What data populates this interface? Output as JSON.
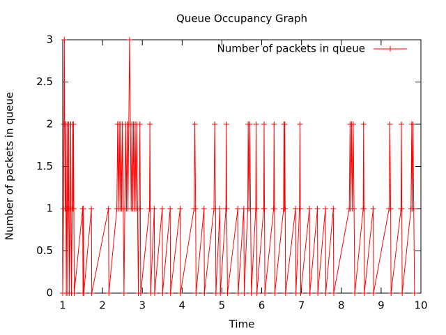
{
  "chart_data": {
    "type": "line",
    "title": "Queue Occupancy Graph",
    "x_label": "Time",
    "y_label": "Number of packets in queue",
    "x": [
      1.0,
      1.02,
      1.03,
      1.04,
      1.05,
      1.06,
      1.07,
      1.08,
      1.09,
      1.1,
      1.11,
      1.12,
      1.13,
      1.14,
      1.15,
      1.16,
      1.17,
      1.19,
      1.2,
      1.21,
      1.22,
      1.24,
      1.25,
      1.26,
      1.27,
      1.28,
      1.29,
      1.5,
      1.51,
      1.52,
      1.53,
      1.72,
      1.73,
      2.15,
      2.16,
      2.36,
      2.38,
      2.4,
      2.42,
      2.44,
      2.46,
      2.48,
      2.5,
      2.52,
      2.54,
      2.56,
      2.58,
      2.6,
      2.62,
      2.64,
      2.66,
      2.68,
      2.7,
      2.72,
      2.74,
      2.76,
      2.78,
      2.8,
      2.82,
      2.84,
      2.86,
      2.88,
      2.9,
      2.92,
      2.94,
      2.95,
      2.96,
      3.18,
      3.19,
      3.2,
      3.21,
      3.3,
      3.31,
      3.5,
      3.51,
      3.7,
      3.71,
      3.95,
      3.96,
      4.3,
      4.32,
      4.34,
      4.35,
      4.55,
      4.56,
      4.8,
      4.82,
      4.84,
      4.85,
      4.95,
      4.96,
      5.1,
      5.11,
      5.12,
      5.14,
      5.4,
      5.41,
      5.55,
      5.56,
      5.65,
      5.66,
      5.68,
      5.7,
      5.72,
      5.74,
      5.85,
      5.86,
      5.87,
      5.88,
      6.05,
      6.06,
      6.07,
      6.08,
      6.3,
      6.31,
      6.32,
      6.33,
      6.55,
      6.56,
      6.57,
      6.58,
      6.59,
      6.6,
      6.85,
      6.86,
      6.95,
      6.96,
      6.97,
      6.98,
      7.2,
      7.21,
      7.4,
      7.41,
      7.6,
      7.61,
      7.8,
      7.81,
      8.2,
      8.22,
      8.24,
      8.26,
      8.28,
      8.3,
      8.32,
      8.34,
      8.55,
      8.56,
      8.57,
      8.58,
      8.8,
      8.81,
      9.2,
      9.22,
      9.24,
      9.25,
      9.5,
      9.51,
      9.52,
      9.53,
      9.75,
      9.77,
      9.78,
      9.8,
      9.82,
      9.84
    ],
    "series": [
      {
        "name": "Number of packets in queue",
        "color": "#ff0000",
        "values": [
          0,
          1,
          2,
          3,
          2,
          1,
          2,
          1,
          0,
          1,
          2,
          1,
          0,
          1,
          2,
          1,
          0,
          1,
          2,
          1,
          0,
          1,
          2,
          1,
          2,
          1,
          0,
          1,
          0,
          1,
          0,
          1,
          0,
          1,
          0,
          1,
          2,
          1,
          2,
          1,
          2,
          1,
          2,
          1,
          0,
          1,
          2,
          1,
          2,
          1,
          2,
          3,
          2,
          1,
          2,
          1,
          2,
          1,
          2,
          1,
          2,
          1,
          0,
          1,
          2,
          1,
          0,
          1,
          2,
          1,
          0,
          1,
          0,
          1,
          0,
          1,
          0,
          1,
          0,
          1,
          2,
          1,
          0,
          1,
          0,
          1,
          2,
          1,
          0,
          1,
          0,
          1,
          2,
          1,
          0,
          1,
          0,
          1,
          0,
          1,
          2,
          1,
          2,
          1,
          0,
          1,
          2,
          1,
          0,
          1,
          2,
          1,
          0,
          1,
          2,
          1,
          0,
          1,
          2,
          1,
          2,
          1,
          0,
          1,
          0,
          1,
          2,
          1,
          0,
          1,
          0,
          1,
          0,
          1,
          0,
          1,
          0,
          1,
          2,
          1,
          2,
          1,
          2,
          1,
          0,
          1,
          2,
          1,
          0,
          1,
          0,
          1,
          2,
          1,
          0,
          1,
          2,
          1,
          0,
          1,
          2,
          1,
          2,
          1,
          0
        ]
      }
    ],
    "xlim": [
      1,
      10
    ],
    "ylim": [
      0,
      3
    ],
    "xticks": [
      1,
      2,
      3,
      4,
      5,
      6,
      7,
      8,
      9,
      10
    ],
    "yticks": [
      0,
      0.5,
      1,
      1.5,
      2,
      2.5,
      3
    ],
    "legend": "top-right"
  }
}
